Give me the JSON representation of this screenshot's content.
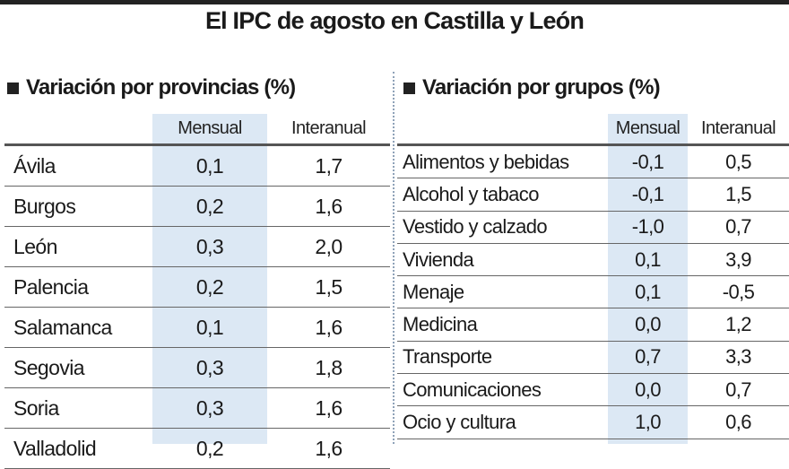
{
  "title": "El IPC de agosto en Castilla y León",
  "chart_data": [
    {
      "type": "table",
      "title": "Variación por provincias (%)",
      "columns": [
        "",
        "Mensual",
        "Interanual"
      ],
      "rows": [
        {
          "name": "Ávila",
          "mensual": "0,1",
          "interanual": "1,7"
        },
        {
          "name": "Burgos",
          "mensual": "0,2",
          "interanual": "1,6"
        },
        {
          "name": "León",
          "mensual": "0,3",
          "interanual": "2,0"
        },
        {
          "name": "Palencia",
          "mensual": "0,2",
          "interanual": "1,5"
        },
        {
          "name": "Salamanca",
          "mensual": "0,1",
          "interanual": "1,6"
        },
        {
          "name": "Segovia",
          "mensual": "0,3",
          "interanual": "1,8"
        },
        {
          "name": "Soria",
          "mensual": "0,3",
          "interanual": "1,6"
        },
        {
          "name": "Valladolid",
          "mensual": "0,2",
          "interanual": "1,6"
        }
      ]
    },
    {
      "type": "table",
      "title": "Variación por grupos (%)",
      "columns": [
        "",
        "Mensual",
        "Interanual"
      ],
      "rows": [
        {
          "name": "Alimentos y bebidas",
          "mensual": "-0,1",
          "interanual": "0,5"
        },
        {
          "name": "Alcohol y tabaco",
          "mensual": "-0,1",
          "interanual": "1,5"
        },
        {
          "name": "Vestido y calzado",
          "mensual": "-1,0",
          "interanual": "0,7"
        },
        {
          "name": "Vivienda",
          "mensual": "0,1",
          "interanual": "3,9"
        },
        {
          "name": "Menaje",
          "mensual": "0,1",
          "interanual": "-0,5"
        },
        {
          "name": "Medicina",
          "mensual": "0,0",
          "interanual": "1,2"
        },
        {
          "name": "Transporte",
          "mensual": "0,7",
          "interanual": "3,3"
        },
        {
          "name": "Comunicaciones",
          "mensual": "0,0",
          "interanual": "0,7"
        },
        {
          "name": "Ocio y cultura",
          "mensual": "1,0",
          "interanual": "0,6"
        }
      ]
    }
  ]
}
